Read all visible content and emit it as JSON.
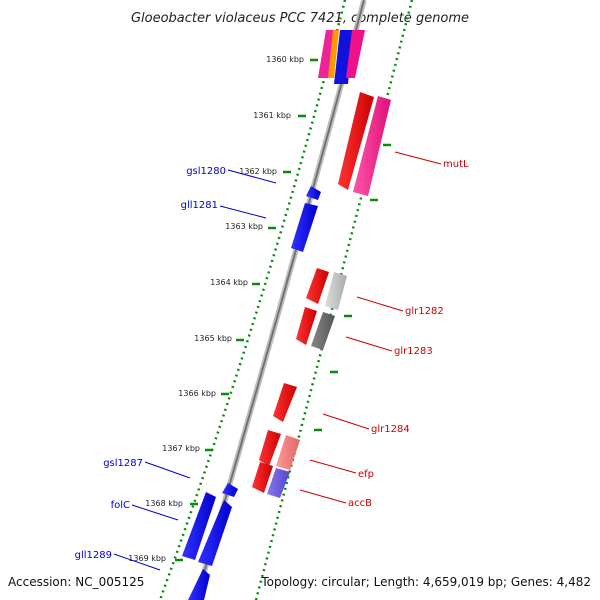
{
  "title": "Gloeobacter violaceus PCC 7421, complete genome",
  "footer": {
    "accession": "Accession: NC_005125",
    "topology": "Topology: circular; Length: 4,659,019 bp; Genes: 4,482"
  },
  "colors": {
    "plus_strand": "#0000ee",
    "minus_strand": "#ee0000",
    "tick": "#008000",
    "backbone": "#808080",
    "label_plus": "#0000cc",
    "label_minus": "#cc0000"
  },
  "scale_labels": [
    "1360 kbp",
    "1361 kbp",
    "1362 kbp",
    "1363 kbp",
    "1364 kbp",
    "1365 kbp",
    "1366 kbp",
    "1367 kbp",
    "1368 kbp",
    "1369 kbp"
  ],
  "left_labels": [
    "gsl1280",
    "gll1281",
    "gsl1287",
    "folC",
    "gll1289"
  ],
  "right_labels": [
    "mutL",
    "glr1282",
    "glr1283",
    "glr1284",
    "efp",
    "accB"
  ]
}
